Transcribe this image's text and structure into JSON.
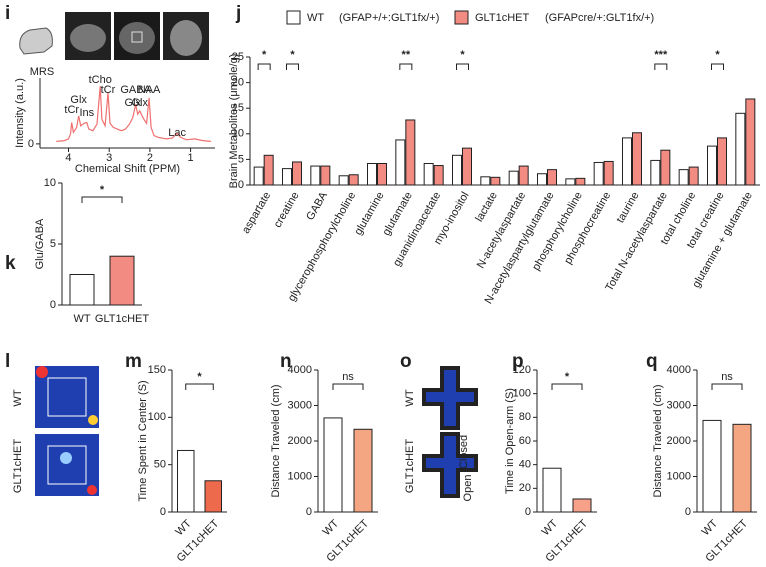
{
  "chart_data": [
    {
      "type": "line",
      "panel": "i",
      "image_label": "MRS",
      "x_label": "Chemical Shift (PPM)",
      "y_label": "Intensity (a.u.)",
      "color": "#f07070",
      "x": [
        4.3,
        4.1,
        4.0,
        3.95,
        3.92,
        3.88,
        3.8,
        3.75,
        3.7,
        3.62,
        3.55,
        3.5,
        3.4,
        3.3,
        3.22,
        3.18,
        3.1,
        3.03,
        2.98,
        2.9,
        2.8,
        2.7,
        2.6,
        2.5,
        2.42,
        2.35,
        2.3,
        2.25,
        2.15,
        2.08,
        2.02,
        1.97,
        1.9,
        1.8,
        1.6,
        1.45,
        1.33,
        1.25,
        1.1,
        0.9,
        0.7,
        0.5
      ],
      "values": [
        0.3,
        0.4,
        0.6,
        1.2,
        2.6,
        1.4,
        2.0,
        3.4,
        2.2,
        2.5,
        2.6,
        1.8,
        1.6,
        2.4,
        7.0,
        3.0,
        2.2,
        6.2,
        2.5,
        2.0,
        1.8,
        1.6,
        1.8,
        2.4,
        3.2,
        4.8,
        3.6,
        4.0,
        3.0,
        2.5,
        5.6,
        2.0,
        1.0,
        0.8,
        0.6,
        0.7,
        1.3,
        0.8,
        0.5,
        0.6,
        0.4,
        0.3
      ],
      "peaks": [
        {
          "label": "tCr",
          "x": 3.92
        },
        {
          "label": "Glx",
          "x": 3.75
        },
        {
          "label": "Ins",
          "x": 3.55
        },
        {
          "label": "tCho",
          "x": 3.22
        },
        {
          "label": "tCr",
          "x": 3.03
        },
        {
          "label": "GABA",
          "x": 2.35
        },
        {
          "label": "Glx",
          "x": 2.42
        },
        {
          "label": "Glx",
          "x": 2.25
        },
        {
          "label": "NAA",
          "x": 2.02
        },
        {
          "label": "Lac",
          "x": 1.33
        }
      ],
      "xlim": [
        4.7,
        0.4
      ],
      "xticks": [
        4,
        3,
        2,
        1
      ],
      "ylim": [
        -0.5,
        8
      ],
      "yticks": [
        0
      ]
    },
    {
      "type": "bar",
      "panel": "j",
      "y_label": "Brain Metabolites (μmole/g)",
      "categories": [
        "aspartate",
        "creatine",
        "GABA",
        "glycerophosphorylcholine",
        "glutamine",
        "glutamate",
        "guanidinoacetate",
        "myo-inositol",
        "lactate",
        "N-acetylaspartate",
        "N-acetylaspartylglutamate",
        "phosphorylcholine",
        "phosphocreatine",
        "taurine",
        "Total N-acetylaspartate",
        "total choline",
        "total creatine",
        "glutamine + glutamate"
      ],
      "highlight_categories": [
        "GABA",
        "glutamate"
      ],
      "highlight_color": "#e03030",
      "series": [
        {
          "name": "WT",
          "genotype": "(GFAP+/+:GLT1fx/+)",
          "color": "#ffffff",
          "values": [
            3.5,
            3.2,
            3.7,
            1.8,
            4.2,
            8.8,
            4.2,
            5.8,
            1.6,
            2.7,
            2.2,
            1.2,
            4.4,
            9.2,
            4.8,
            3.0,
            7.6,
            14.0
          ]
        },
        {
          "name": "GLT1cHET",
          "genotype": "(GFAPcre/+:GLT1fx/+)",
          "color": "#f28b82",
          "values": [
            5.8,
            4.5,
            3.7,
            2.0,
            4.2,
            12.7,
            3.8,
            7.2,
            1.5,
            3.7,
            3.0,
            1.3,
            4.6,
            10.2,
            6.8,
            3.5,
            9.2,
            16.8
          ]
        }
      ],
      "significance": [
        {
          "category": "aspartate",
          "label": "*"
        },
        {
          "category": "creatine",
          "label": "*"
        },
        {
          "category": "glutamate",
          "label": "**"
        },
        {
          "category": "myo-inositol",
          "label": "*"
        },
        {
          "category": "Total N-acetylaspartate",
          "label": "***"
        },
        {
          "category": "total creatine",
          "label": "*"
        }
      ],
      "ylim": [
        0,
        25
      ],
      "yticks": [
        0,
        5,
        10,
        15,
        20,
        25
      ]
    },
    {
      "type": "bar",
      "panel": "k",
      "y_label": "Glu/GABA",
      "categories": [
        "WT",
        "GLT1cHET"
      ],
      "values": [
        2.5,
        4.0
      ],
      "colors": [
        "#ffffff",
        "#f28b82"
      ],
      "significance": "*",
      "ylim": [
        0,
        10
      ],
      "yticks": [
        0,
        5,
        10
      ]
    },
    {
      "type": "bar",
      "panel": "m",
      "y_label": "Time Spent in Center (S)",
      "categories": [
        "WT",
        "GLT1cHET"
      ],
      "values": [
        65,
        33
      ],
      "colors": [
        "#ffffff",
        "#ee6a4d"
      ],
      "significance": "*",
      "ylim": [
        0,
        150
      ],
      "yticks": [
        0,
        50,
        100,
        150
      ]
    },
    {
      "type": "bar",
      "panel": "n",
      "y_label": "Distance Traveled (cm)",
      "categories": [
        "WT",
        "GLT1cHET"
      ],
      "values": [
        2650,
        2330
      ],
      "colors": [
        "#ffffff",
        "#f4a582"
      ],
      "significance": "ns",
      "ylim": [
        0,
        4000
      ],
      "yticks": [
        0,
        1000,
        2000,
        3000,
        4000
      ]
    },
    {
      "type": "bar",
      "panel": "p",
      "y_label": "Time in Open-arm (S)",
      "categories": [
        "WT",
        "GLT1cHET"
      ],
      "values": [
        37,
        11
      ],
      "colors": [
        "#ffffff",
        "#f7a08a"
      ],
      "significance": "*",
      "ylim": [
        0,
        120
      ],
      "yticks": [
        0,
        20,
        40,
        60,
        80,
        100,
        120
      ]
    },
    {
      "type": "bar",
      "panel": "q",
      "y_label": "Distance Traveled (cm)",
      "categories": [
        "WT",
        "GLT1cHET"
      ],
      "values": [
        2580,
        2470
      ],
      "colors": [
        "#ffffff",
        "#f4a582"
      ],
      "significance": "ns",
      "ylim": [
        0,
        4000
      ],
      "yticks": [
        0,
        1000,
        2000,
        3000,
        4000
      ]
    }
  ],
  "images": [
    {
      "panel": "l",
      "labels": [
        "WT",
        "GLT1cHET"
      ]
    },
    {
      "panel": "o",
      "labels": [
        "WT",
        "GLT1cHET"
      ],
      "arm_labels": [
        "Closed",
        "Open"
      ]
    }
  ]
}
